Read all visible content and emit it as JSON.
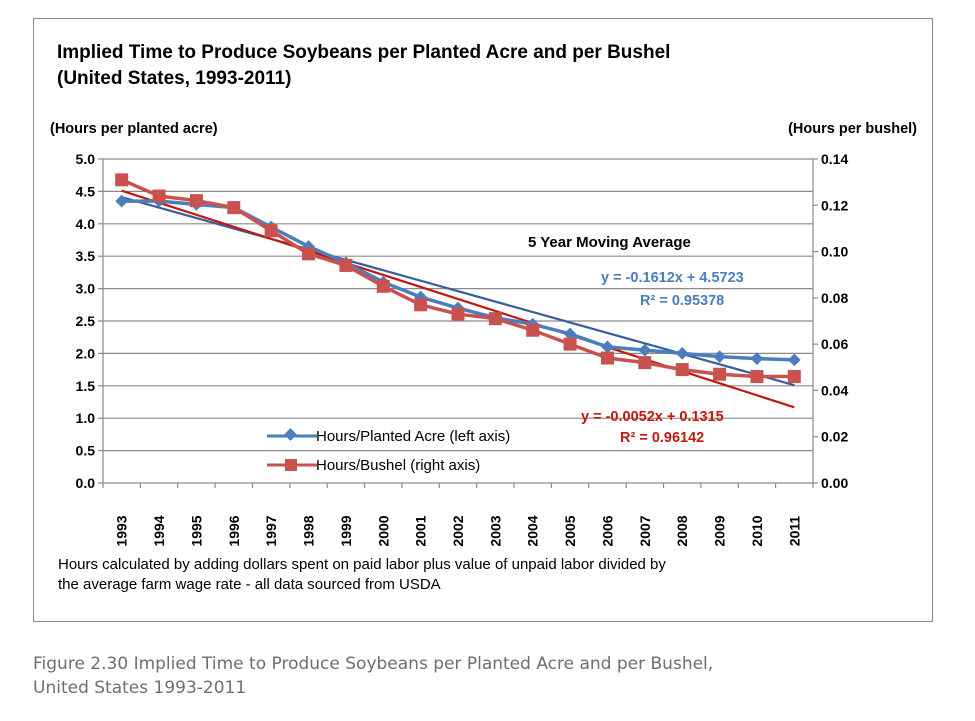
{
  "chart_data": {
    "type": "line",
    "title_line1": "Implied Time to Produce Soybeans per Planted Acre and per Bushel",
    "title_line2": "(United States, 1993-2011)",
    "ylabel_left": "(Hours per planted acre)",
    "ylabel_right": "(Hours per bushel)",
    "x": [
      "1993",
      "1994",
      "1995",
      "1996",
      "1997",
      "1998",
      "1999",
      "2000",
      "2001",
      "2002",
      "2003",
      "2004",
      "2005",
      "2006",
      "2007",
      "2008",
      "2009",
      "2010",
      "2011"
    ],
    "ylim_left": [
      0,
      5.0
    ],
    "ylim_right": [
      0,
      0.14
    ],
    "yticks_left": [
      "0.0",
      "0.5",
      "1.0",
      "1.5",
      "2.0",
      "2.5",
      "3.0",
      "3.5",
      "4.0",
      "4.5",
      "5.0"
    ],
    "yticks_right": [
      "0.00",
      "0.02",
      "0.04",
      "0.06",
      "0.08",
      "0.10",
      "0.12",
      "0.14"
    ],
    "grid": "horizontal",
    "series": [
      {
        "name": "Hours/Planted Acre (left axis)",
        "axis": "left",
        "color": "#4a7ebf",
        "marker": "diamond",
        "values": [
          4.35,
          4.35,
          4.3,
          4.25,
          3.95,
          3.65,
          3.4,
          3.1,
          2.87,
          2.7,
          2.55,
          2.45,
          2.3,
          2.1,
          2.05,
          2.0,
          1.95,
          1.92,
          1.9
        ]
      },
      {
        "name": "Hours/Bushel (right axis)",
        "axis": "right",
        "color": "#c9524e",
        "marker": "square",
        "values": [
          0.131,
          0.124,
          0.122,
          0.119,
          0.109,
          0.099,
          0.094,
          0.085,
          0.077,
          0.073,
          0.071,
          0.066,
          0.06,
          0.054,
          0.052,
          0.049,
          0.047,
          0.046,
          0.046
        ]
      }
    ],
    "trendlines": [
      {
        "axis": "left",
        "color": "#3b5e9a",
        "slope": -0.1612,
        "intercept": 4.5723
      },
      {
        "axis": "right",
        "color": "#c0190f",
        "slope": -0.0052,
        "intercept": 0.1315
      }
    ],
    "annotation": "5 Year Moving Average",
    "eq_blue_line1": "y = -0.1612x + 4.5723",
    "eq_blue_line2": "R² = 0.95378",
    "eq_red_line1": "y = -0.0052x + 0.1315",
    "eq_red_line2": "R² = 0.96142",
    "note_line1": "Hours calculated by adding dollars spent on paid labor plus value of unpaid labor divided by",
    "note_line2": "the average farm wage rate - all data sourced from USDA"
  },
  "caption_line1": "Figure 2.30 Implied Time to Produce Soybeans per Planted Acre and per Bushel,",
  "caption_line2": "United States 1993-2011"
}
